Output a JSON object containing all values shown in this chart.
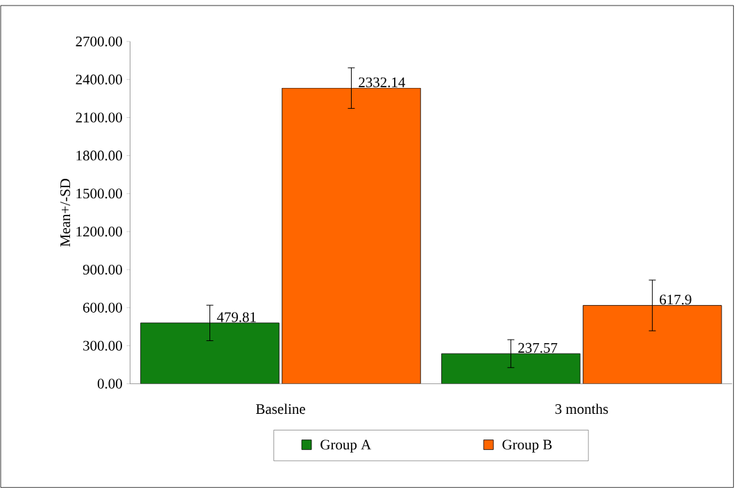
{
  "chart_data": {
    "type": "bar",
    "ylabel": "Mean+/-SD",
    "categories": [
      "Baseline",
      "3 months"
    ],
    "series": [
      {
        "name": "Group A",
        "color": "#118011",
        "values": [
          479.81,
          237.57
        ],
        "value_labels": [
          "479.81",
          "237.57"
        ],
        "errors": [
          140,
          110
        ]
      },
      {
        "name": "Group B",
        "color": "#ff6600",
        "values": [
          2332.14,
          617.9
        ],
        "value_labels": [
          "2332.14",
          "617.9"
        ],
        "errors": [
          160,
          200
        ]
      }
    ],
    "ylim": [
      0,
      2700
    ],
    "yticks": [
      {
        "value": 0,
        "label": "0.00"
      },
      {
        "value": 300,
        "label": "300.00"
      },
      {
        "value": 600,
        "label": "600.00"
      },
      {
        "value": 900,
        "label": "900.00"
      },
      {
        "value": 1200,
        "label": "1200.00"
      },
      {
        "value": 1500,
        "label": "1500.00"
      },
      {
        "value": 1800,
        "label": "1800.00"
      },
      {
        "value": 2100,
        "label": "2100.00"
      },
      {
        "value": 2400,
        "label": "2400.00"
      },
      {
        "value": 2700,
        "label": "2700.00"
      }
    ],
    "grid": false,
    "legend": "bottom"
  }
}
